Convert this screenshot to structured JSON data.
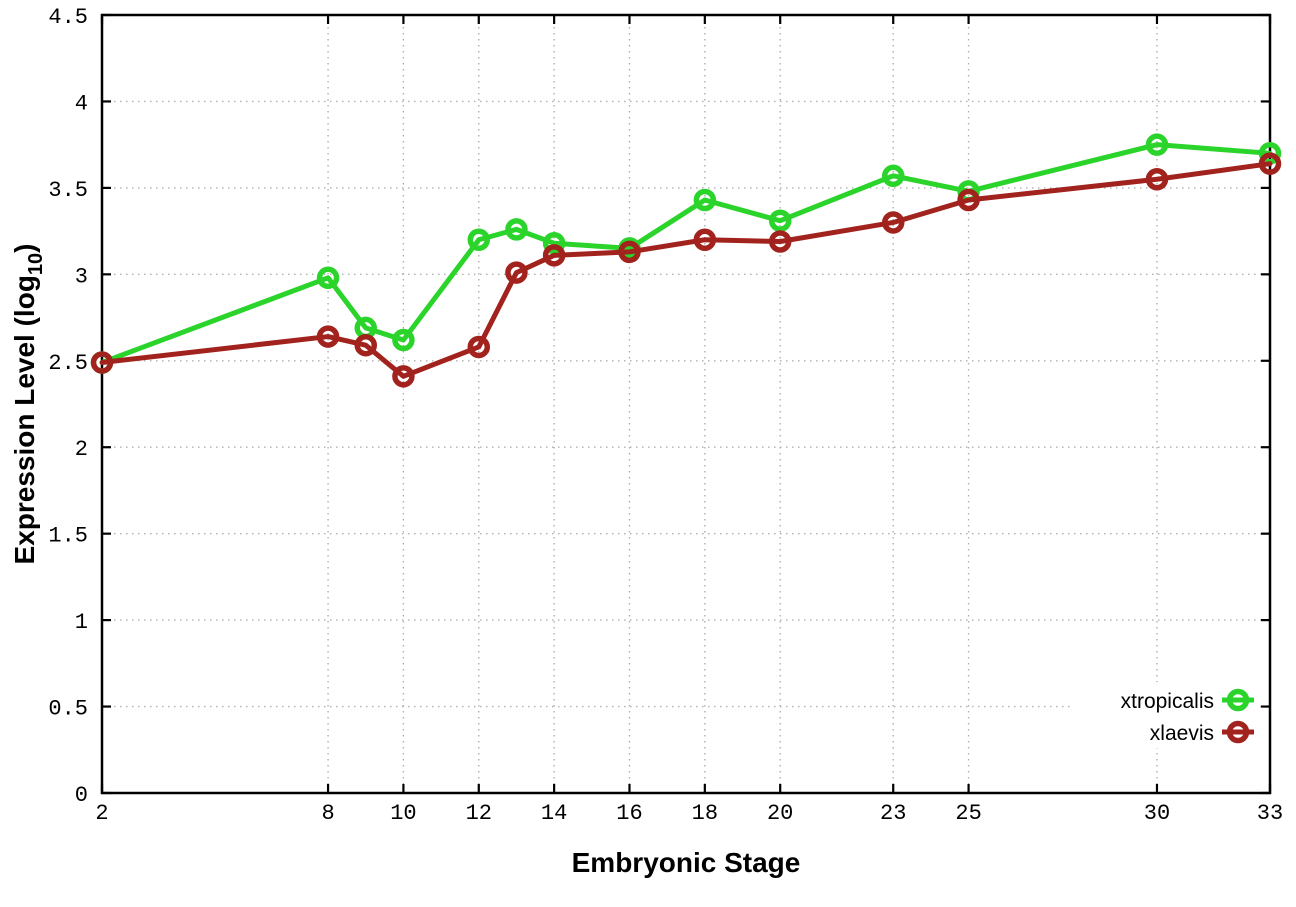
{
  "chart_data": {
    "type": "line",
    "title": "",
    "xlabel": "Embryonic Stage",
    "ylabel": {
      "main": "Expression Level (log",
      "sub": "10",
      "end": ")"
    },
    "x": [
      2,
      8,
      9,
      10,
      12,
      13,
      14,
      16,
      18,
      20,
      23,
      25,
      30,
      33
    ],
    "xlim": [
      2,
      33
    ],
    "xticks": [
      2,
      8,
      10,
      12,
      14,
      16,
      18,
      20,
      23,
      25,
      30,
      33
    ],
    "ylim": [
      0,
      4.5
    ],
    "yticks": [
      0,
      0.5,
      1,
      1.5,
      2,
      2.5,
      3,
      3.5,
      4,
      4.5
    ],
    "ytick_labels": [
      "0",
      "0.5",
      "1",
      "1.5",
      "2",
      "2.5",
      "3",
      "3.5",
      "4",
      "4.5"
    ],
    "grid": "dotted",
    "legend_position": "bottom-right",
    "marker": "open-circle",
    "series": [
      {
        "name": "xtropicalis",
        "color": "#2bd42b",
        "values": [
          2.49,
          2.98,
          2.69,
          2.62,
          3.2,
          3.26,
          3.18,
          3.15,
          3.43,
          3.31,
          3.57,
          3.48,
          3.75,
          3.7
        ]
      },
      {
        "name": "xlaevis",
        "color": "#a2231d",
        "values": [
          2.49,
          2.64,
          2.59,
          2.41,
          2.58,
          3.01,
          3.11,
          3.13,
          3.2,
          3.19,
          3.3,
          3.43,
          3.55,
          3.64
        ]
      }
    ]
  },
  "colors": {
    "background": "#ffffff",
    "grid": "#b0b0b0",
    "axis": "#000000"
  }
}
